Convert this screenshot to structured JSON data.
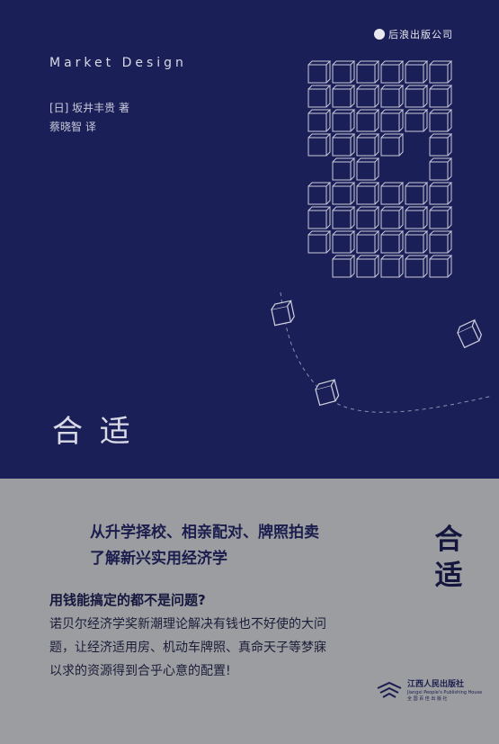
{
  "publisher_top": "后浪出版公司",
  "english_title": "Market Design",
  "author_line": "[日] 坂井丰贵  著",
  "translator_line": "蔡晓智  译",
  "title": "合 适",
  "tagline1": "从升学择校、相亲配对、牌照拍卖",
  "tagline2": "了解新兴实用经济学",
  "side_title": [
    "合",
    "适"
  ],
  "question": "用钱能搞定的都不是问题?",
  "description": "诺贝尔经济学奖新潮理论解决有钱也不好使的大问题，让经济适用房、机动车牌照、真命天子等梦寐以求的资源得到合乎心意的配置!",
  "publisher_bottom": {
    "cn": "江西人民出版社",
    "en": "Jiangxi People's Publishing House",
    "sub": "全 国 百 佳 出 版 社"
  },
  "colors": {
    "navy": "#1b1f57",
    "gray": "#9c9da1",
    "ink": "#1a1d4d"
  }
}
